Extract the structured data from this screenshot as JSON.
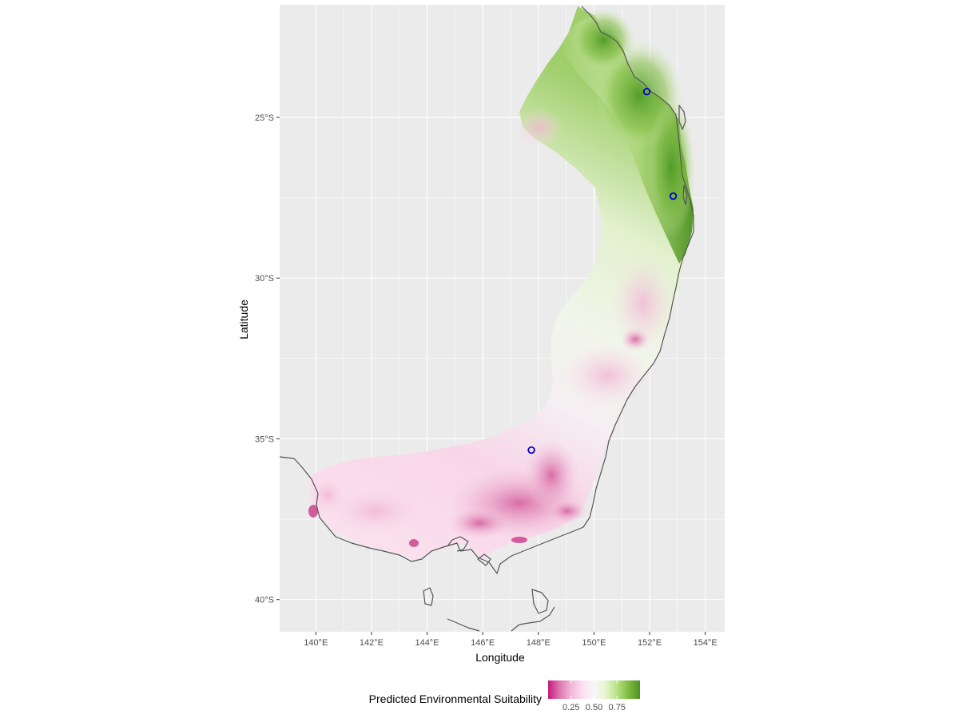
{
  "chart_data": {
    "type": "map",
    "title": "",
    "xlabel": "Longitude",
    "ylabel": "Latitude",
    "xlim": [
      138.7,
      154.7
    ],
    "ylim": [
      -41.0,
      -21.5
    ],
    "x_ticks": [
      {
        "value": 140,
        "label": "140°E"
      },
      {
        "value": 142,
        "label": "142°E"
      },
      {
        "value": 144,
        "label": "144°E"
      },
      {
        "value": 146,
        "label": "146°E"
      },
      {
        "value": 148,
        "label": "148°E"
      },
      {
        "value": 150,
        "label": "150°E"
      },
      {
        "value": 152,
        "label": "152°E"
      },
      {
        "value": 154,
        "label": "154°E"
      }
    ],
    "y_ticks": [
      {
        "value": -25,
        "label": "25°S"
      },
      {
        "value": -30,
        "label": "30°S"
      },
      {
        "value": -35,
        "label": "35°S"
      },
      {
        "value": -40,
        "label": "40°S"
      }
    ],
    "grid": true,
    "occurrence_points": [
      {
        "lon": 151.9,
        "lat": -24.2
      },
      {
        "lon": 152.85,
        "lat": -27.45
      },
      {
        "lon": 147.75,
        "lat": -35.35
      }
    ],
    "legend": {
      "title": "Predicted Environmental Suitability",
      "position": "bottom",
      "scale": "PiYG",
      "range": [
        0.0,
        1.0
      ],
      "ticks": [
        {
          "value": 0.25,
          "label": "0.25"
        },
        {
          "value": 0.5,
          "label": "0.50"
        },
        {
          "value": 0.75,
          "label": "0.75"
        }
      ],
      "colors": [
        "#c51b7d",
        "#de77ae",
        "#f1b6da",
        "#fde0ef",
        "#f7f7f7",
        "#e6f5d0",
        "#b8e186",
        "#7fbc41",
        "#4d9221"
      ]
    },
    "colors": {
      "panel_background": "#ebebeb",
      "grid_line": "#ffffff",
      "coastline": "#555555",
      "point_stroke": "#0000cc"
    }
  }
}
